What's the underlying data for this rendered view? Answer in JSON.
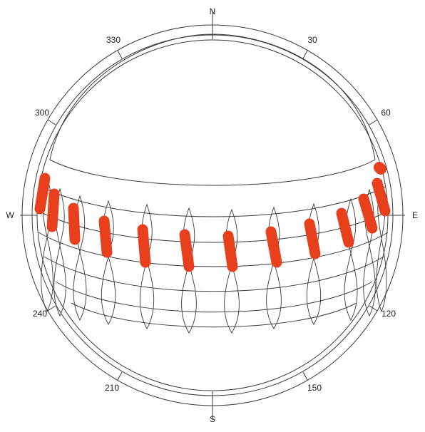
{
  "compass": {
    "cardinals": [
      "N",
      "E",
      "S",
      "W"
    ],
    "bearing_labels": [
      "30",
      "60",
      "120",
      "150",
      "210",
      "240",
      "300",
      "330"
    ]
  },
  "colors": {
    "line": "#3a3a3a",
    "marker": "#e8401c",
    "background": "#ffffff"
  }
}
